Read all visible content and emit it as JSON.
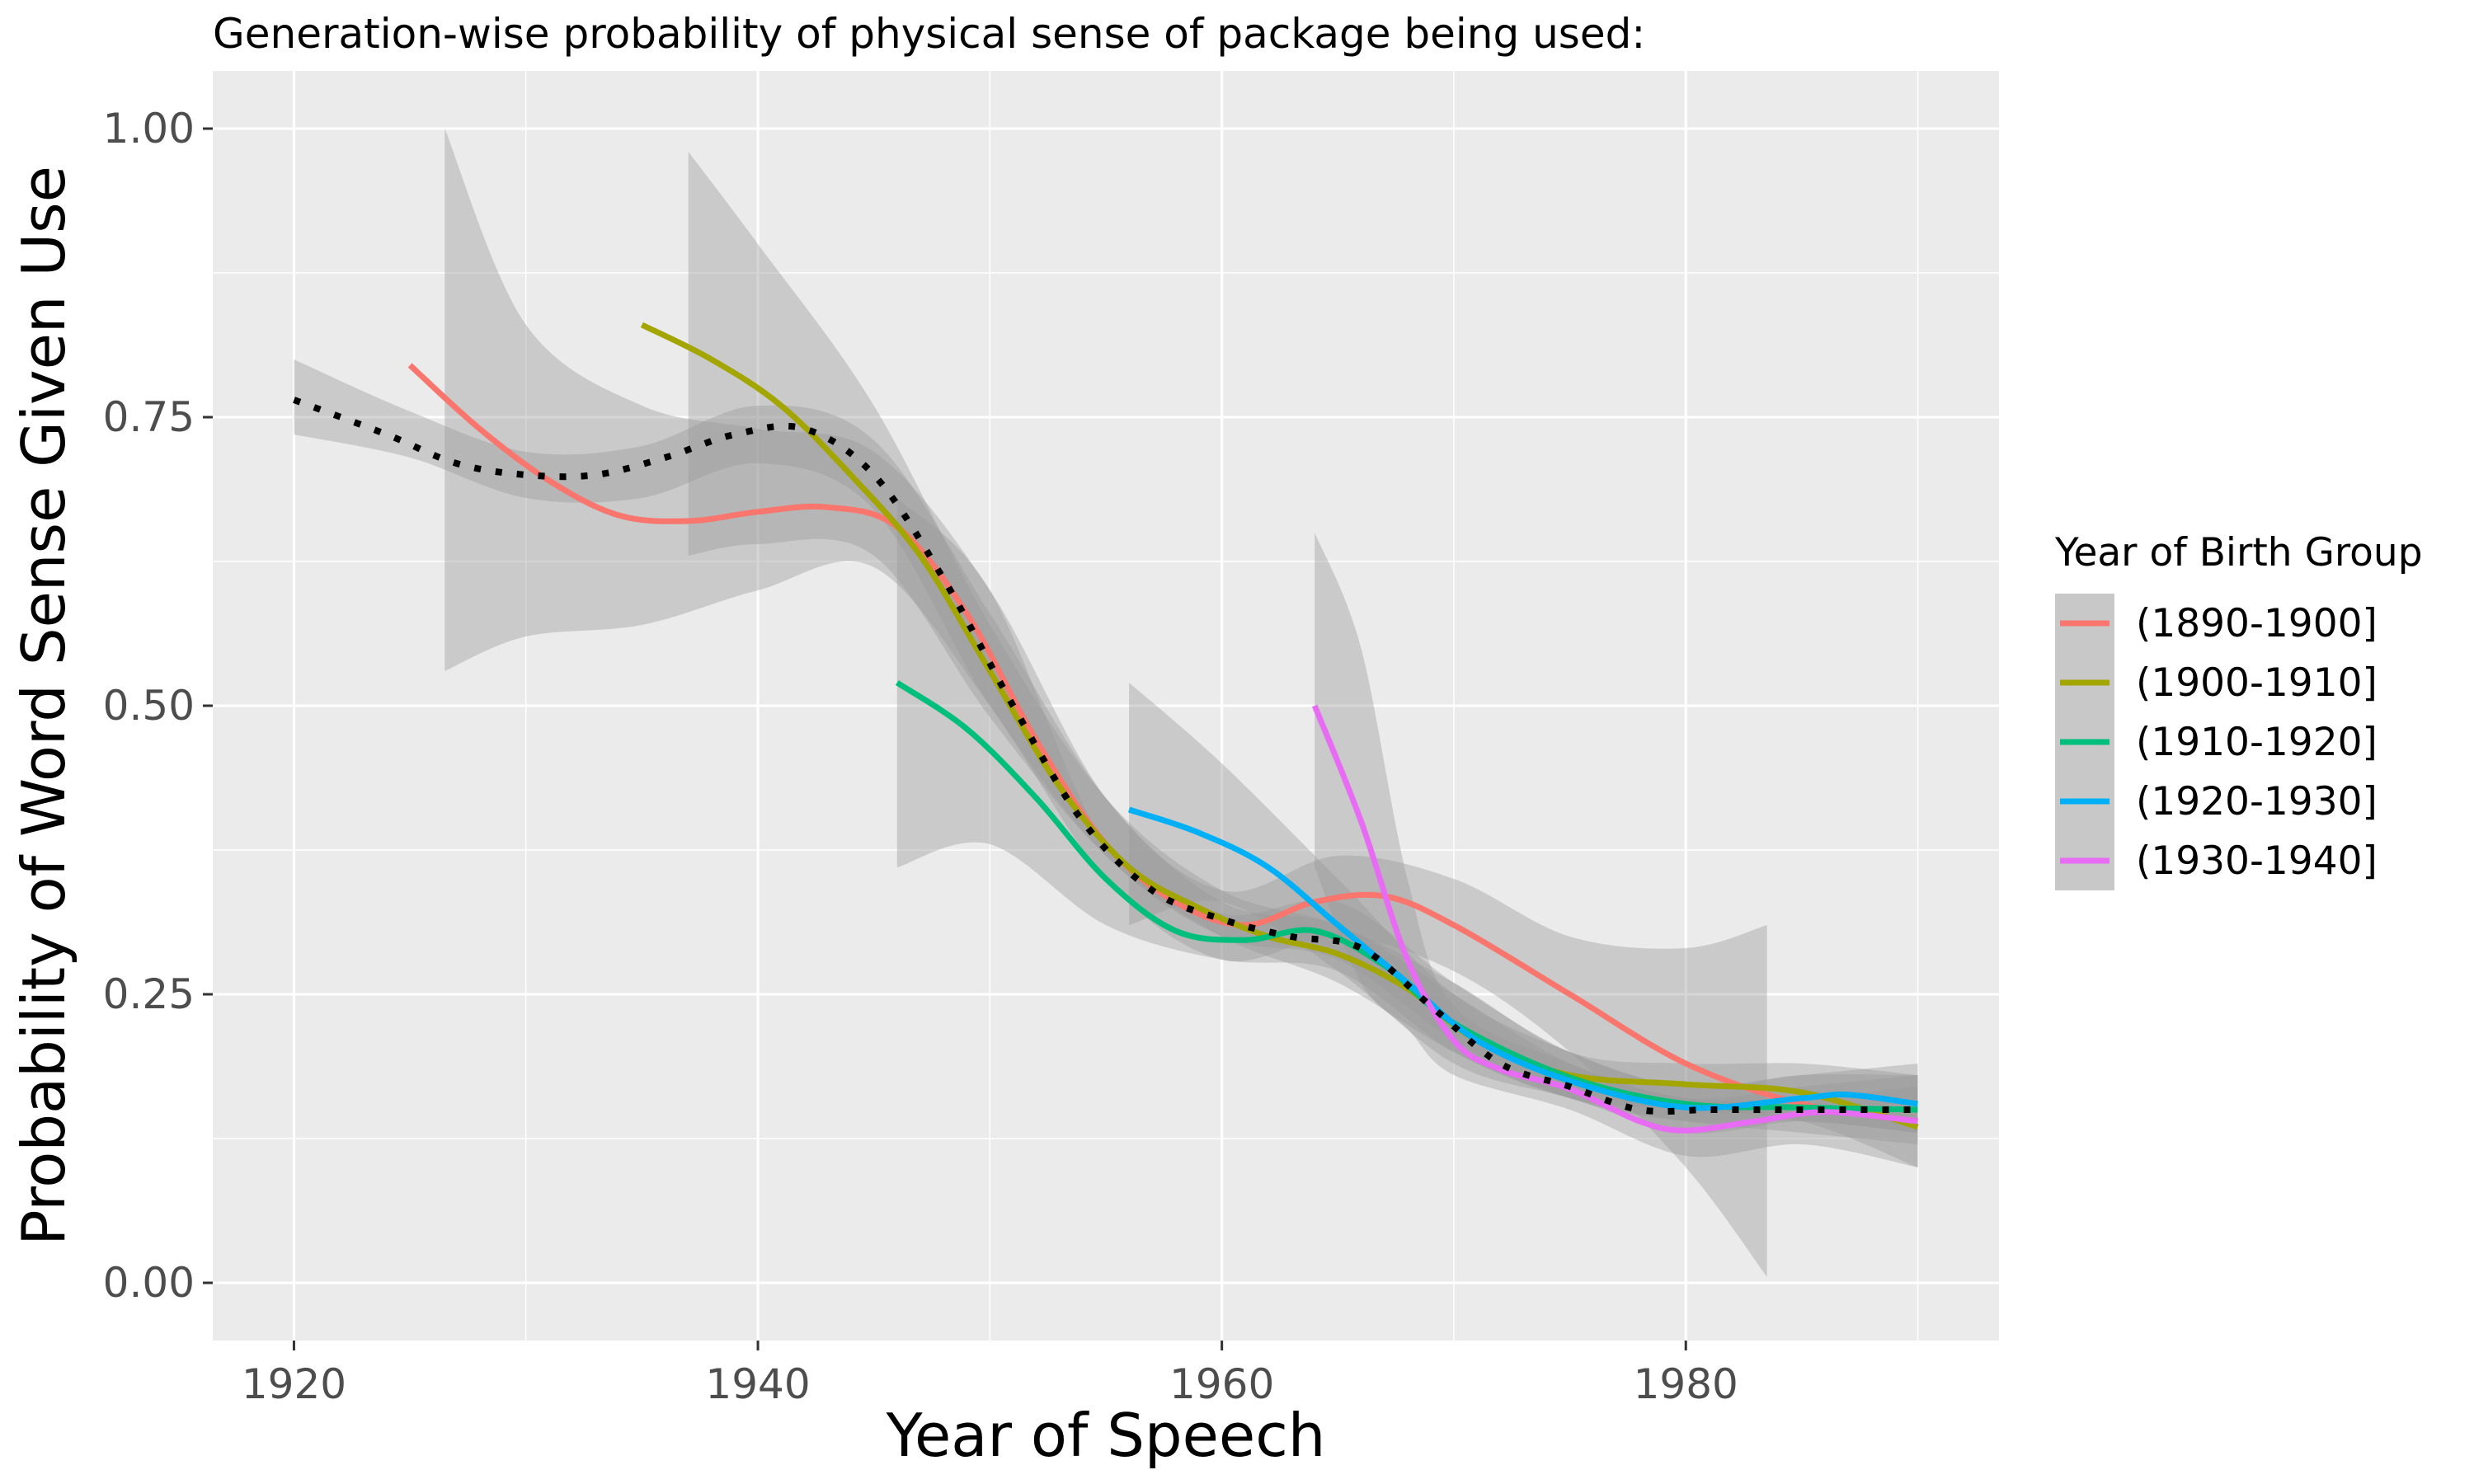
{
  "chart_data": {
    "type": "line",
    "title": "Generation-wise probability of physical sense of package being used:",
    "xlabel": "Year of Speech",
    "ylabel": "Probability of Word Sense Given Use",
    "xlim": [
      1916.5,
      1993.5
    ],
    "ylim": [
      -0.05,
      1.05
    ],
    "x_ticks": [
      1920,
      1940,
      1960,
      1980
    ],
    "y_ticks": [
      0,
      0.25,
      0.5,
      0.75,
      1.0
    ],
    "y_tick_labels": [
      "0.00",
      "0.25",
      "0.50",
      "0.75",
      "1.00"
    ],
    "grid": true,
    "legend": {
      "title": "Year of Birth Group",
      "position": "right"
    },
    "overall": {
      "style": "dotted",
      "color": "#000000",
      "points": [
        [
          1920,
          0.765
        ],
        [
          1924,
          0.735
        ],
        [
          1927,
          0.71
        ],
        [
          1930,
          0.7
        ],
        [
          1933,
          0.7
        ],
        [
          1936,
          0.715
        ],
        [
          1939,
          0.735
        ],
        [
          1942,
          0.74
        ],
        [
          1945,
          0.7
        ],
        [
          1948,
          0.61
        ],
        [
          1951,
          0.5
        ],
        [
          1954,
          0.4
        ],
        [
          1957,
          0.34
        ],
        [
          1960,
          0.315
        ],
        [
          1963,
          0.3
        ],
        [
          1966,
          0.29
        ],
        [
          1969,
          0.24
        ],
        [
          1972,
          0.19
        ],
        [
          1975,
          0.17
        ],
        [
          1978,
          0.15
        ],
        [
          1981,
          0.15
        ],
        [
          1984,
          0.15
        ],
        [
          1987,
          0.15
        ],
        [
          1990,
          0.15
        ]
      ],
      "band": [
        [
          1920,
          0.735,
          0.8
        ],
        [
          1925,
          0.715,
          0.755
        ],
        [
          1930,
          0.68,
          0.72
        ],
        [
          1935,
          0.68,
          0.725
        ],
        [
          1940,
          0.71,
          0.76
        ],
        [
          1945,
          0.67,
          0.73
        ],
        [
          1950,
          0.5,
          0.58
        ],
        [
          1955,
          0.37,
          0.42
        ],
        [
          1960,
          0.3,
          0.33
        ],
        [
          1965,
          0.28,
          0.31
        ],
        [
          1970,
          0.21,
          0.25
        ],
        [
          1975,
          0.16,
          0.19
        ],
        [
          1980,
          0.14,
          0.16
        ],
        [
          1985,
          0.14,
          0.16
        ],
        [
          1990,
          0.13,
          0.17
        ]
      ]
    },
    "series": [
      {
        "name": "(1890-1900]",
        "color": "#F8766D",
        "points": [
          [
            1925,
            0.795
          ],
          [
            1928,
            0.74
          ],
          [
            1931,
            0.695
          ],
          [
            1934,
            0.665
          ],
          [
            1937,
            0.66
          ],
          [
            1940,
            0.668
          ],
          [
            1943,
            0.672
          ],
          [
            1946,
            0.655
          ],
          [
            1949,
            0.58
          ],
          [
            1952,
            0.47
          ],
          [
            1955,
            0.38
          ],
          [
            1958,
            0.33
          ],
          [
            1961,
            0.31
          ],
          [
            1964,
            0.33
          ],
          [
            1967,
            0.335
          ],
          [
            1970,
            0.31
          ],
          [
            1975,
            0.25
          ],
          [
            1980,
            0.19
          ],
          [
            1985,
            0.155
          ],
          [
            1990,
            0.14
          ]
        ],
        "band": [
          [
            1926.5,
            0.53,
            1.0
          ],
          [
            1930,
            0.56,
            0.83
          ],
          [
            1935,
            0.57,
            0.76
          ],
          [
            1940,
            0.6,
            0.74
          ],
          [
            1945,
            0.62,
            0.72
          ],
          [
            1950,
            0.5,
            0.6
          ],
          [
            1955,
            0.35,
            0.42
          ],
          [
            1960,
            0.28,
            0.34
          ],
          [
            1965,
            0.3,
            0.37
          ],
          [
            1970,
            0.27,
            0.35
          ],
          [
            1975,
            0.2,
            0.3
          ],
          [
            1980,
            0.1,
            0.29
          ],
          [
            1983.5,
            0.005,
            0.31
          ]
        ]
      },
      {
        "name": "(1900-1910]",
        "color": "#A3A500",
        "points": [
          [
            1935,
            0.83
          ],
          [
            1938,
            0.8
          ],
          [
            1941,
            0.76
          ],
          [
            1944,
            0.7
          ],
          [
            1947,
            0.63
          ],
          [
            1950,
            0.53
          ],
          [
            1953,
            0.43
          ],
          [
            1956,
            0.36
          ],
          [
            1959,
            0.325
          ],
          [
            1962,
            0.3
          ],
          [
            1965,
            0.285
          ],
          [
            1968,
            0.255
          ],
          [
            1971,
            0.21
          ],
          [
            1975,
            0.18
          ],
          [
            1980,
            0.172
          ],
          [
            1985,
            0.165
          ],
          [
            1990,
            0.135
          ]
        ],
        "band": [
          [
            1937,
            0.63,
            0.98
          ],
          [
            1940,
            0.64,
            0.9
          ],
          [
            1945,
            0.63,
            0.76
          ],
          [
            1950,
            0.49,
            0.57
          ],
          [
            1955,
            0.37,
            0.42
          ],
          [
            1960,
            0.3,
            0.34
          ],
          [
            1965,
            0.26,
            0.31
          ],
          [
            1970,
            0.2,
            0.26
          ],
          [
            1975,
            0.16,
            0.2
          ],
          [
            1980,
            0.15,
            0.19
          ],
          [
            1985,
            0.14,
            0.19
          ],
          [
            1990,
            0.1,
            0.18
          ]
        ]
      },
      {
        "name": "(1910-1920]",
        "color": "#00BF7D",
        "points": [
          [
            1946,
            0.52
          ],
          [
            1949,
            0.48
          ],
          [
            1952,
            0.42
          ],
          [
            1955,
            0.35
          ],
          [
            1958,
            0.305
          ],
          [
            1961,
            0.297
          ],
          [
            1964,
            0.305
          ],
          [
            1967,
            0.275
          ],
          [
            1970,
            0.225
          ],
          [
            1975,
            0.178
          ],
          [
            1980,
            0.155
          ],
          [
            1985,
            0.152
          ],
          [
            1990,
            0.15
          ]
        ],
        "band": [
          [
            1946,
            0.36,
            0.68
          ],
          [
            1950,
            0.38,
            0.6
          ],
          [
            1955,
            0.31,
            0.38
          ],
          [
            1960,
            0.28,
            0.32
          ],
          [
            1965,
            0.27,
            0.33
          ],
          [
            1970,
            0.2,
            0.26
          ],
          [
            1975,
            0.16,
            0.2
          ],
          [
            1980,
            0.14,
            0.17
          ],
          [
            1985,
            0.13,
            0.18
          ],
          [
            1990,
            0.12,
            0.18
          ]
        ]
      },
      {
        "name": "(1920-1930]",
        "color": "#00B0F6",
        "points": [
          [
            1956,
            0.41
          ],
          [
            1959,
            0.39
          ],
          [
            1962,
            0.36
          ],
          [
            1965,
            0.31
          ],
          [
            1968,
            0.26
          ],
          [
            1971,
            0.21
          ],
          [
            1975,
            0.175
          ],
          [
            1980,
            0.152
          ],
          [
            1985,
            0.16
          ],
          [
            1987,
            0.163
          ],
          [
            1990,
            0.155
          ]
        ],
        "band": [
          [
            1956,
            0.31,
            0.52
          ],
          [
            1960,
            0.33,
            0.45
          ],
          [
            1965,
            0.27,
            0.35
          ],
          [
            1970,
            0.19,
            0.25
          ],
          [
            1975,
            0.16,
            0.2
          ],
          [
            1980,
            0.13,
            0.17
          ],
          [
            1985,
            0.14,
            0.18
          ],
          [
            1990,
            0.13,
            0.19
          ]
        ]
      },
      {
        "name": "(1930-1940]",
        "color": "#E76BF3",
        "points": [
          [
            1964,
            0.5
          ],
          [
            1966,
            0.4
          ],
          [
            1968,
            0.28
          ],
          [
            1970,
            0.21
          ],
          [
            1972,
            0.185
          ],
          [
            1975,
            0.168
          ],
          [
            1978,
            0.14
          ],
          [
            1980,
            0.132
          ],
          [
            1983,
            0.14
          ],
          [
            1986,
            0.148
          ],
          [
            1990,
            0.14
          ]
        ],
        "band": [
          [
            1964,
            0.36,
            0.65
          ],
          [
            1966,
            0.26,
            0.55
          ],
          [
            1968,
            0.22,
            0.35
          ],
          [
            1970,
            0.18,
            0.24
          ],
          [
            1975,
            0.15,
            0.19
          ],
          [
            1980,
            0.11,
            0.16
          ],
          [
            1985,
            0.12,
            0.17
          ],
          [
            1990,
            0.1,
            0.18
          ]
        ]
      }
    ]
  }
}
